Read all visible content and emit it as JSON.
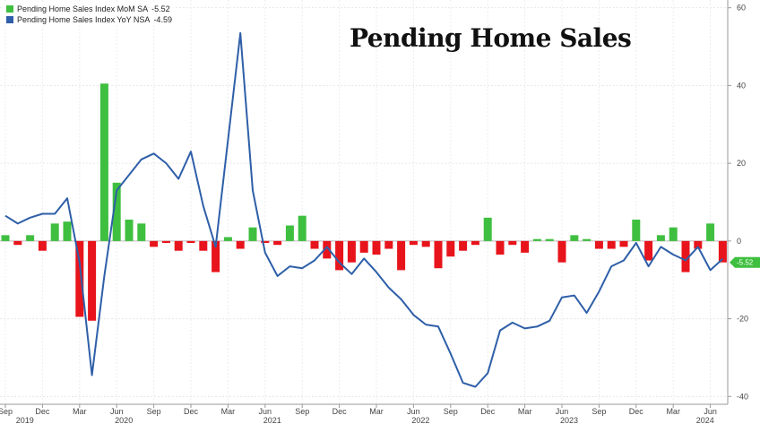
{
  "legend": [
    {
      "name": "Pending Home Sales Index MoM SA",
      "last_value": "-5.52",
      "color": "#3fbf3f"
    },
    {
      "name": "Pending Home Sales Index YoY NSA",
      "last_value": "-4.59",
      "color": "#2e5fa8"
    }
  ],
  "title": "Pending Home Sales",
  "last_value_badge": "-5.52",
  "chart_data": {
    "type": "bar+line",
    "title": "Pending Home Sales",
    "ylim": [
      -42,
      62
    ],
    "yticks": [
      -40,
      -20,
      0,
      20,
      40,
      60
    ],
    "grid": true,
    "legend_position": "top-left",
    "x": [
      "2019-09",
      "2019-10",
      "2019-11",
      "2019-12",
      "2020-01",
      "2020-02",
      "2020-03",
      "2020-04",
      "2020-05",
      "2020-06",
      "2020-07",
      "2020-08",
      "2020-09",
      "2020-10",
      "2020-11",
      "2020-12",
      "2021-01",
      "2021-02",
      "2021-03",
      "2021-04",
      "2021-05",
      "2021-06",
      "2021-07",
      "2021-08",
      "2021-09",
      "2021-10",
      "2021-11",
      "2021-12",
      "2022-01",
      "2022-02",
      "2022-03",
      "2022-04",
      "2022-05",
      "2022-06",
      "2022-07",
      "2022-08",
      "2022-09",
      "2022-10",
      "2022-11",
      "2022-12",
      "2023-01",
      "2023-02",
      "2023-03",
      "2023-04",
      "2023-05",
      "2023-06",
      "2023-07",
      "2023-08",
      "2023-09",
      "2023-10",
      "2023-11",
      "2023-12",
      "2024-01",
      "2024-02",
      "2024-03",
      "2024-04",
      "2024-05",
      "2024-06",
      "2024-07"
    ],
    "x_tick_labels": [
      "Sep",
      "Dec",
      "Mar",
      "Jun",
      "Sep",
      "Dec",
      "Mar",
      "Jun",
      "Sep",
      "Dec",
      "Mar",
      "Jun",
      "Sep",
      "Dec",
      "Mar",
      "Jun",
      "Sep",
      "Dec",
      "Mar",
      "Jun"
    ],
    "x_tick_months": [
      "2019-09",
      "2019-12",
      "2020-03",
      "2020-06",
      "2020-09",
      "2020-12",
      "2021-03",
      "2021-06",
      "2021-09",
      "2021-12",
      "2022-03",
      "2022-06",
      "2022-09",
      "2022-12",
      "2023-03",
      "2023-06",
      "2023-09",
      "2023-12",
      "2024-03",
      "2024-06"
    ],
    "year_labels": [
      "2019",
      "2020",
      "2021",
      "2022",
      "2023",
      "2024"
    ],
    "year_months": [
      "2019-10",
      "2020-06",
      "2021-06",
      "2022-06",
      "2023-06",
      "2024-05"
    ],
    "series": [
      {
        "name": "Pending Home Sales Index MoM SA",
        "type": "bar",
        "positive_color": "#3fbf3f",
        "negative_color": "#e8141c",
        "values": [
          1.5,
          -1.0,
          1.5,
          -2.5,
          4.5,
          5.0,
          -19.5,
          -20.5,
          40.5,
          15.0,
          5.5,
          4.5,
          -1.5,
          -0.5,
          -2.5,
          -0.5,
          -2.5,
          -8.0,
          1.0,
          -2.0,
          3.5,
          -0.5,
          -1.0,
          4.0,
          6.5,
          -2.0,
          -4.5,
          -7.5,
          -5.5,
          -3.0,
          -3.5,
          -2.0,
          -7.5,
          -1.0,
          -1.5,
          -7.0,
          -4.0,
          -2.5,
          -1.0,
          6.0,
          -3.5,
          -1.0,
          -3.0,
          0.5,
          0.5,
          -5.5,
          1.5,
          0.5,
          -2.0,
          -2.0,
          -1.5,
          5.5,
          -5.0,
          1.5,
          3.5,
          -8.0,
          -2.0,
          4.5,
          -5.5
        ]
      },
      {
        "name": "Pending Home Sales Index YoY NSA",
        "type": "line",
        "color": "#2e5fa8",
        "values": [
          6.5,
          4.5,
          6.0,
          7.0,
          7.0,
          11.0,
          -5.5,
          -34.5,
          -9.0,
          13.0,
          17.0,
          21.0,
          22.5,
          20.0,
          16.0,
          23.0,
          9.0,
          -1.5,
          26.0,
          53.5,
          13.0,
          -3.0,
          -9.0,
          -6.5,
          -7.0,
          -5.0,
          -1.5,
          -5.5,
          -8.5,
          -4.5,
          -8.0,
          -12.0,
          -15.0,
          -19.0,
          -21.5,
          -22.0,
          -29.0,
          -36.5,
          -37.5,
          -34.0,
          -23.0,
          -21.0,
          -22.5,
          -22.0,
          -20.5,
          -14.5,
          -14.0,
          -18.5,
          -13.0,
          -6.5,
          -5.0,
          -0.5,
          -6.5,
          -1.5,
          -3.5,
          -5.0,
          -1.5,
          -7.5,
          -4.6
        ]
      }
    ]
  }
}
